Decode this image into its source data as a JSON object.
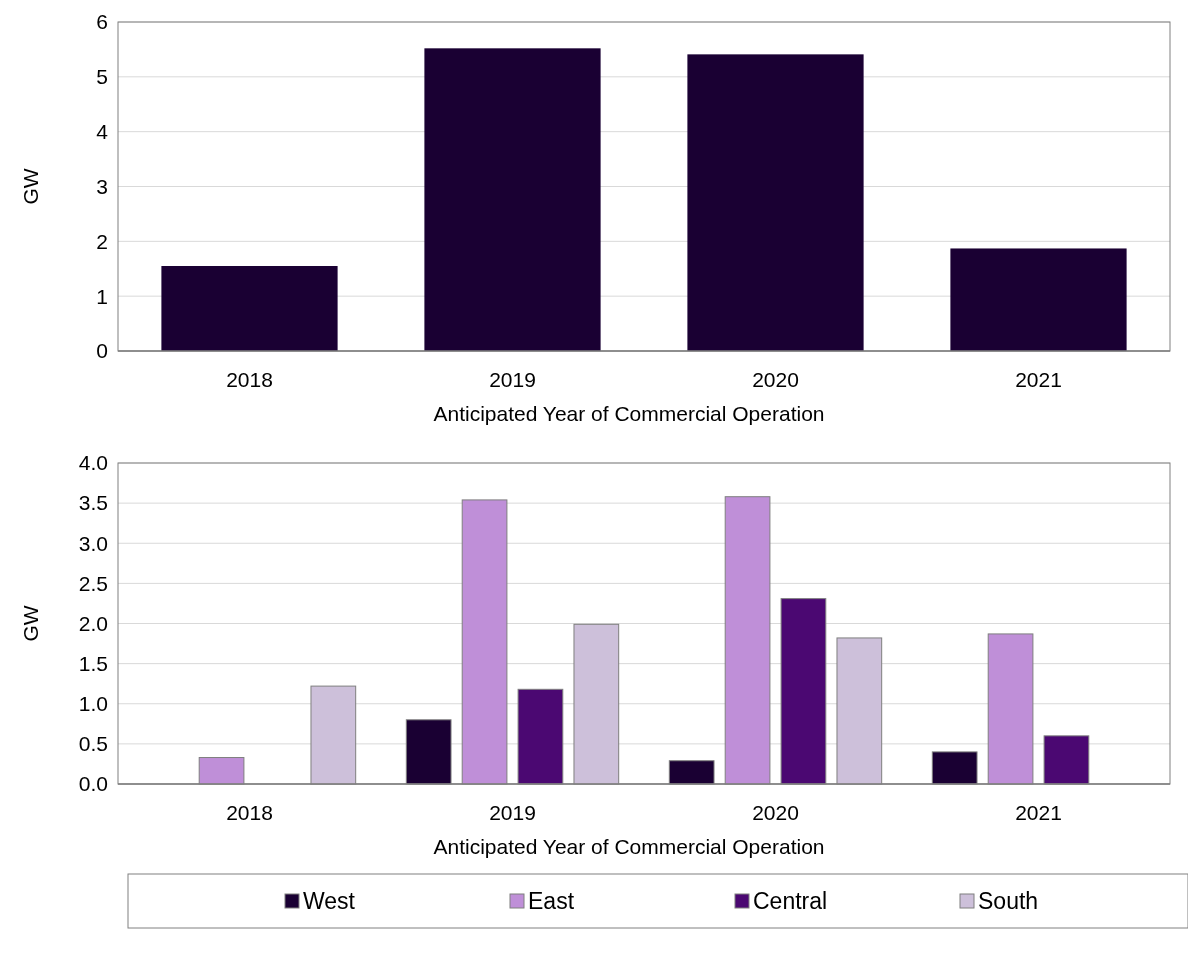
{
  "chart_data": [
    {
      "type": "bar",
      "xlabel": "Anticipated Year of Commercial Operation",
      "ylabel": "GW",
      "categories": [
        "2018",
        "2019",
        "2020",
        "2021"
      ],
      "series": [
        {
          "color": "#1a0033",
          "values": [
            1.55,
            5.52,
            5.41,
            1.87
          ]
        }
      ],
      "ylim": [
        0,
        6
      ],
      "yticks": [
        0,
        1,
        2,
        3,
        4,
        5,
        6
      ],
      "grid": "y",
      "legend": false
    },
    {
      "type": "bar",
      "xlabel": "Anticipated Year of Commercial Operation",
      "ylabel": "GW",
      "categories": [
        "2018",
        "2019",
        "2020",
        "2021"
      ],
      "series": [
        {
          "name": "West",
          "color": "#1a0033",
          "values": [
            null,
            0.8,
            0.29,
            0.4
          ]
        },
        {
          "name": "East",
          "color": "#bf8fd8",
          "values": [
            0.33,
            3.54,
            3.58,
            1.87
          ]
        },
        {
          "name": "Central",
          "color": "#4b0872",
          "values": [
            null,
            1.18,
            2.31,
            0.6
          ]
        },
        {
          "name": "South",
          "color": "#cdc0da",
          "values": [
            1.22,
            1.99,
            1.82,
            null
          ]
        }
      ],
      "ylim": [
        0,
        4
      ],
      "yticks": [
        {
          "value": 0,
          "label": "0.0"
        },
        {
          "value": 0.5,
          "label": "0.5"
        },
        {
          "value": 1,
          "label": "1.0"
        },
        {
          "value": 1.5,
          "label": "1.5"
        },
        {
          "value": 2,
          "label": "2.0"
        },
        {
          "value": 2.5,
          "label": "2.5"
        },
        {
          "value": 3,
          "label": "3.0"
        },
        {
          "value": 3.5,
          "label": "3.5"
        },
        {
          "value": 4,
          "label": "4.0"
        }
      ],
      "grid": "y",
      "legend": "bottom"
    }
  ]
}
